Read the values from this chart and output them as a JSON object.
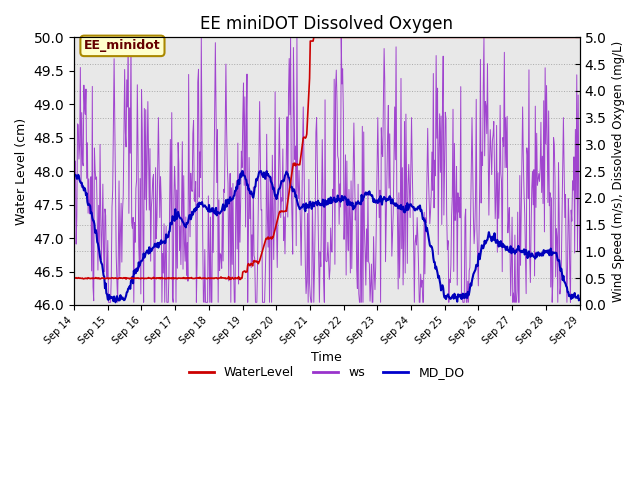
{
  "title": "EE miniDOT Dissolved Oxygen",
  "xlabel": "Time",
  "ylabel_left": "Water Level (cm)",
  "ylabel_right": "Wind Speed (m/s), Dissolved Oxygen (mg/L)",
  "ylim_left": [
    46.0,
    50.0
  ],
  "ylim_right": [
    0.0,
    5.0
  ],
  "yticks_left": [
    46.0,
    46.5,
    47.0,
    47.5,
    48.0,
    48.5,
    49.0,
    49.5,
    50.0
  ],
  "yticks_right": [
    0.0,
    0.5,
    1.0,
    1.5,
    2.0,
    2.5,
    3.0,
    3.5,
    4.0,
    4.5,
    5.0
  ],
  "bg_color": "#e8e8e8",
  "fig_color": "#ffffff",
  "legend_entries": [
    "WaterLevel",
    "ws",
    "MD_DO"
  ],
  "legend_colors": [
    "#cc0000",
    "#9933cc",
    "#0000cc"
  ],
  "annotation_text": "EE_minidot",
  "annotation_color": "#660000",
  "annotation_bg": "#ffffcc",
  "annotation_border": "#aa8800",
  "wl_color": "#cc0000",
  "ws_color": "#9933cc",
  "do_color": "#0000bb"
}
